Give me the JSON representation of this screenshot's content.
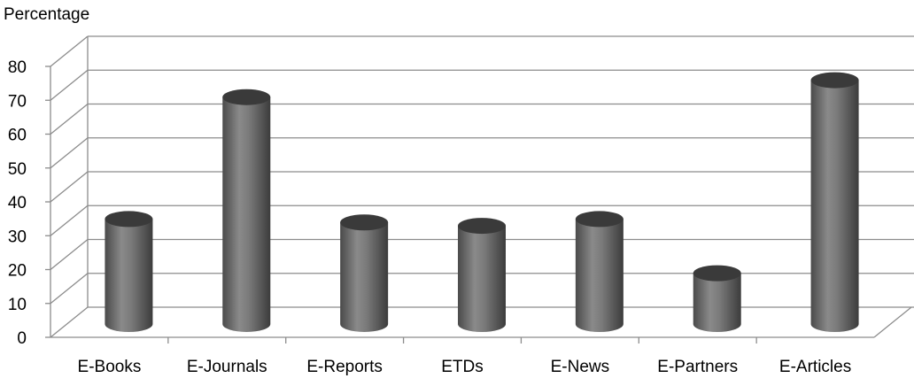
{
  "chart_data": {
    "type": "bar",
    "title": "",
    "ylabel": "Percentage",
    "xlabel": "",
    "ylim": [
      0,
      80
    ],
    "yticks": [
      0,
      10,
      20,
      30,
      40,
      50,
      60,
      70,
      80
    ],
    "grid": true,
    "legend": "none",
    "bar_style": "3d-cylinder",
    "colors": {
      "bar": "#6e6e6e",
      "bar_top": "#3a3a3a",
      "grid": "#8c8c8c"
    },
    "categories": [
      "E-Books",
      "E-Journals",
      "E-Reports",
      "ETDs",
      "E-News",
      "E-Partners",
      "E-Articles"
    ],
    "values": [
      31,
      67,
      30,
      29,
      31,
      15,
      72
    ]
  }
}
